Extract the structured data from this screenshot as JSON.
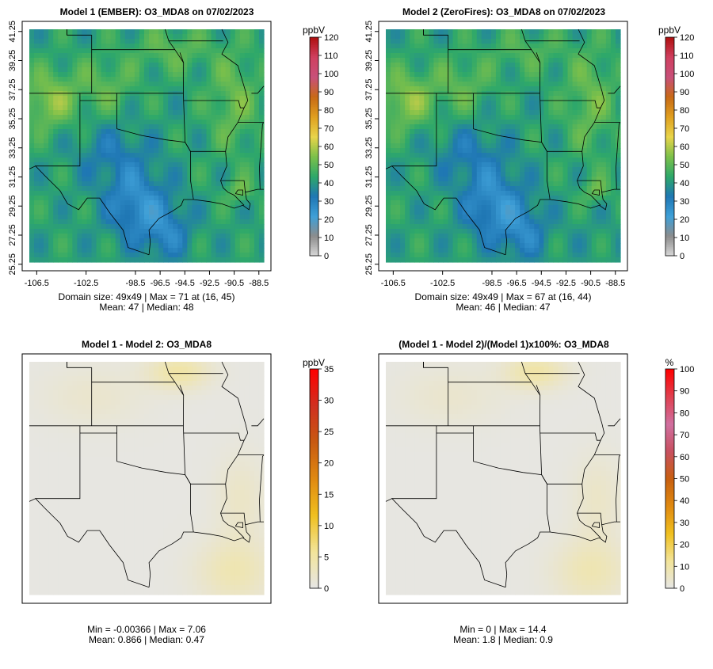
{
  "panels": [
    {
      "title": "Model 1 (EMBER): O3_MDA8 on 07/02/2023",
      "unit": "ppbV",
      "scale": [
        0,
        120
      ],
      "ticks": [
        0,
        10,
        20,
        30,
        40,
        50,
        60,
        70,
        80,
        90,
        100,
        110,
        120
      ],
      "stats_line1": "Domain size: 49x49 | Max = 71 at (16, 45)",
      "stats_line2": "Mean: 47 |  Median: 48",
      "map_style": "concentration"
    },
    {
      "title": "Model 2 (ZeroFires): O3_MDA8 on 07/02/2023",
      "unit": "ppbV",
      "scale": [
        0,
        120
      ],
      "ticks": [
        0,
        10,
        20,
        30,
        40,
        50,
        60,
        70,
        80,
        90,
        100,
        110,
        120
      ],
      "stats_line1": "Domain size: 49x49 | Max = 67 at (16, 44)",
      "stats_line2": "Mean: 46 |  Median: 47",
      "map_style": "concentration"
    },
    {
      "title": "Model 1 - Model 2: O3_MDA8",
      "unit": "ppbV",
      "scale": [
        0,
        35
      ],
      "ticks": [
        0,
        5,
        10,
        15,
        20,
        25,
        30,
        35
      ],
      "stats_line1": "Min = -0.00366 | Max = 7.06",
      "stats_line2": "Mean: 0.866 |  Median: 0.47",
      "map_style": "difference"
    },
    {
      "title": "(Model 1 - Model 2)/(Model 1)x100%: O3_MDA8",
      "unit": "%",
      "scale": [
        0,
        100
      ],
      "ticks": [
        0,
        10,
        20,
        30,
        40,
        50,
        60,
        70,
        80,
        90,
        100
      ],
      "stats_line1": "Min = 0 | Max = 14.4",
      "stats_line2": "Mean: 1.8 |  Median: 0.9",
      "map_style": "percent"
    }
  ],
  "x_ticks": [
    "-106.5",
    "-102.5",
    "-98.5",
    "-96.5",
    "-94.5",
    "-92.5",
    "-90.5",
    "-88.5"
  ],
  "x_tick_values": [
    -106.5,
    -102.5,
    -98.5,
    -96.5,
    -94.5,
    -92.5,
    -90.5,
    -88.5
  ],
  "y_ticks": [
    "25.25",
    "27.25",
    "29.25",
    "31.25",
    "33.25",
    "35.25",
    "37.25",
    "39.25",
    "41.25"
  ],
  "y_tick_values": [
    25.25,
    27.25,
    29.25,
    31.25,
    33.25,
    35.25,
    37.25,
    39.25,
    41.25
  ],
  "lon_range": [
    -107.1,
    -88.1
  ],
  "lat_range": [
    25.4,
    41.4
  ],
  "colors": {
    "conc_stops": [
      "#d9d9d9",
      "#8c8c8c",
      "#3fa0d8",
      "#1f77b4",
      "#2ea86a",
      "#7cc04a",
      "#e8d44a",
      "#e0a020",
      "#c86a16",
      "#c8507a",
      "#d04060",
      "#b01010"
    ],
    "diff_stops": [
      "#e6e6e6",
      "#f2e49a",
      "#f0c020",
      "#e08a10",
      "#c85a10",
      "#d03020",
      "#ff0000"
    ],
    "pct_stops": [
      "#e6e6e6",
      "#f2e49a",
      "#f0c020",
      "#e08a10",
      "#c86010",
      "#c85060",
      "#d070a0",
      "#e04050",
      "#ff0000"
    ]
  }
}
